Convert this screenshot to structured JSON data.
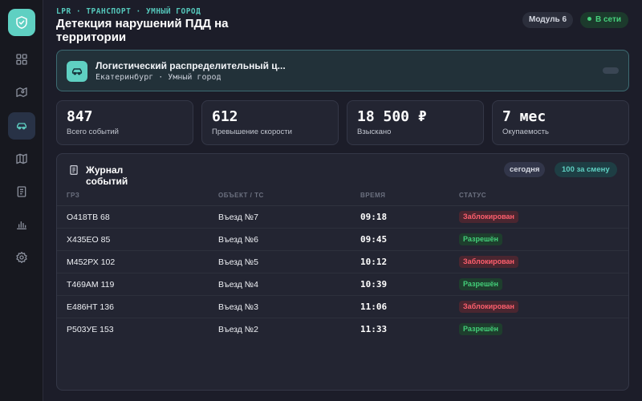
{
  "header": {
    "eyebrow": "LPR · ТРАНСПОРТ · УМНЫЙ ГОРОД",
    "title": "Детекция нарушений ПДД на территории",
    "module_label": "Модуль 6",
    "status_label": "В сети"
  },
  "sidebar": {
    "items": [
      {
        "icon": "dashboard-icon"
      },
      {
        "icon": "map-route-icon"
      },
      {
        "icon": "car-icon",
        "active": true
      },
      {
        "icon": "map-icon"
      },
      {
        "icon": "document-icon"
      },
      {
        "icon": "bar-chart-icon"
      },
      {
        "icon": "gear-icon"
      }
    ]
  },
  "site": {
    "name": "Логистический распределительный ц...",
    "subtitle": "Екатеринбург · Умный город"
  },
  "stats": [
    {
      "value": "847",
      "label": "Всего событий"
    },
    {
      "value": "612",
      "label": "Превышение скорости"
    },
    {
      "value": "18 500 ₽",
      "label": "Взыскано"
    },
    {
      "value": "7 мес",
      "label": "Окупаемость"
    }
  ],
  "journal": {
    "title": "Журнал событий",
    "filter_today": "сегодня",
    "filter_shift": "100 за смену",
    "columns": {
      "plate": "ГРЗ",
      "object": "ОБЪЕКТ / ТС",
      "time": "ВРЕМЯ",
      "status": "СТАТУС"
    },
    "rows": [
      {
        "plate": "О418ТВ 68",
        "object": "Въезд №7",
        "time": "09:18",
        "status": "Заблокирован",
        "kind": "blocked"
      },
      {
        "plate": "Х435ЕО 85",
        "object": "Въезд №6",
        "time": "09:45",
        "status": "Разрешён",
        "kind": "allowed"
      },
      {
        "plate": "М452РХ 102",
        "object": "Въезд №5",
        "time": "10:12",
        "status": "Заблокирован",
        "kind": "blocked"
      },
      {
        "plate": "Т469АМ 119",
        "object": "Въезд №4",
        "time": "10:39",
        "status": "Разрешён",
        "kind": "allowed"
      },
      {
        "plate": "Е486НТ 136",
        "object": "Въезд №3",
        "time": "11:06",
        "status": "Заблокирован",
        "kind": "blocked"
      },
      {
        "plate": "Р503УЕ 153",
        "object": "Въезд №2",
        "time": "11:33",
        "status": "Разрешён",
        "kind": "allowed"
      }
    ]
  },
  "colors": {
    "accent": "#5fd0c2",
    "background": "#1c1d29",
    "blocked": "#ff5f6d",
    "allowed": "#43d079"
  }
}
